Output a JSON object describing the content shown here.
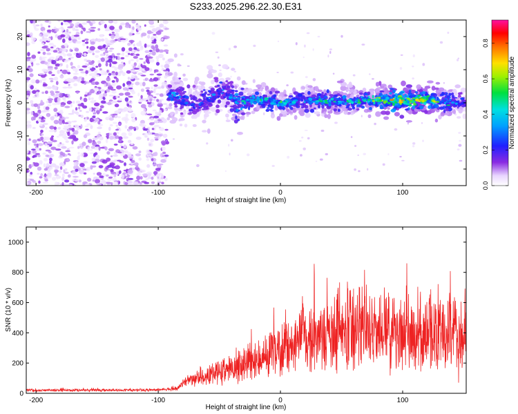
{
  "figure_title": "S233.2025.296.22.30.E31",
  "chart_data": [
    {
      "type": "heatmap",
      "title": "S233.2025.296.22.30.E31",
      "xlabel": "Height of straight line (km)",
      "ylabel": "Frequency (Hz)",
      "xlim": [
        -208,
        152
      ],
      "ylim": [
        -25,
        25
      ],
      "xticks": [
        -200,
        -100,
        0,
        100
      ],
      "xtick_labels": [
        "-200",
        "-100",
        "0",
        "100"
      ],
      "yticks": [
        -20,
        -10,
        0,
        10,
        20
      ],
      "ytick_labels": [
        "-20",
        "-10",
        "0",
        "10",
        "20"
      ],
      "colorbar": {
        "label": "Normalized spectral amplitude",
        "range": [
          0,
          0.93
        ],
        "ticks": [
          0.0,
          0.2,
          0.4,
          0.6,
          0.8
        ],
        "tick_labels": [
          "0.0",
          "0.2",
          "0.4",
          "0.6",
          "0.8"
        ],
        "colormap": "rainbow (white-violet-blue-cyan-green-yellow-red-magenta)"
      },
      "features": {
        "noise_region_x": [
          -208,
          -92
        ],
        "signal_band": {
          "x": [
            -90,
            -70,
            -55,
            -45,
            -35,
            -20,
            0,
            20,
            40,
            60,
            80,
            100,
            120,
            140,
            152
          ],
          "center_freq_hz": [
            3,
            -1,
            2,
            4,
            0,
            1,
            0,
            0.5,
            0.5,
            0.5,
            1,
            0.5,
            0.8,
            0,
            0
          ],
          "peak_amplitude": [
            0.4,
            0.3,
            0.35,
            0.3,
            0.45,
            0.5,
            0.55,
            0.45,
            0.5,
            0.5,
            0.65,
            0.85,
            0.75,
            0.45,
            0.3
          ]
        }
      }
    },
    {
      "type": "line",
      "xlabel": "Height of straight line (km)",
      "ylabel": "SNR (10 * v/v)",
      "xlim": [
        -208,
        152
      ],
      "ylim": [
        0,
        1100
      ],
      "xticks": [
        -200,
        -100,
        0,
        100
      ],
      "xtick_labels": [
        "-200",
        "-100",
        "0",
        "100"
      ],
      "yticks": [
        0,
        200,
        400,
        600,
        800,
        1000
      ],
      "ytick_labels": [
        "0",
        "200",
        "400",
        "600",
        "800",
        "1000"
      ],
      "series": [
        {
          "name": "SNR",
          "color": "#ee2222",
          "envelope_x": [
            -208,
            -100,
            -85,
            -75,
            -60,
            -40,
            -20,
            0,
            20,
            40,
            55,
            70,
            90,
            110,
            130,
            140,
            152
          ],
          "envelope_mean": [
            20,
            22,
            30,
            90,
            120,
            160,
            220,
            280,
            350,
            400,
            430,
            420,
            400,
            380,
            430,
            350,
            380
          ],
          "envelope_spread": [
            8,
            8,
            10,
            40,
            60,
            80,
            120,
            160,
            210,
            230,
            260,
            240,
            220,
            200,
            230,
            250,
            260
          ]
        }
      ]
    }
  ]
}
